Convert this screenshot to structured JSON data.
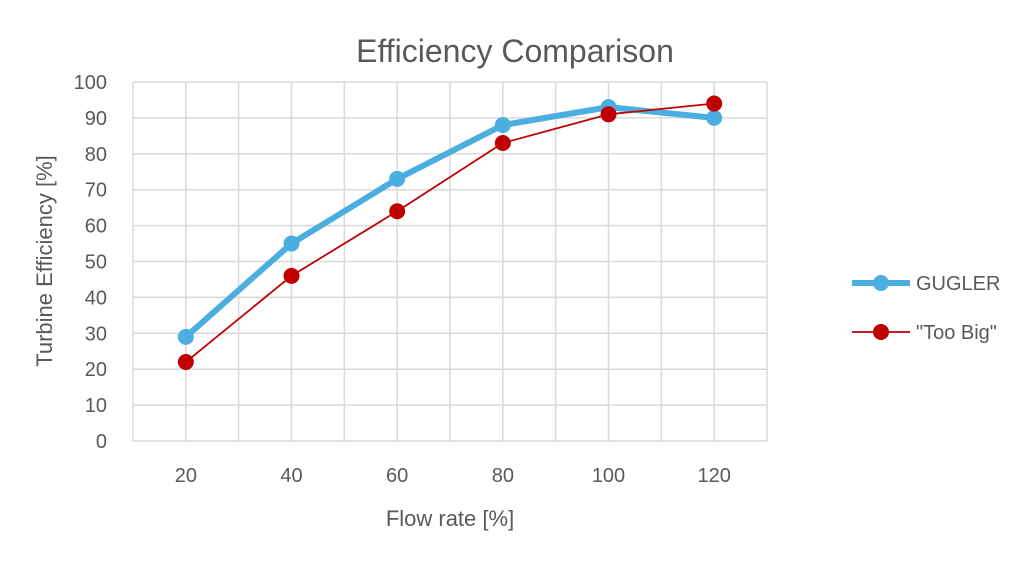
{
  "chart_data": {
    "type": "line",
    "title": "Efficiency Comparison",
    "xlabel": "Flow rate [%]",
    "ylabel": "Turbine Efficiency [%]",
    "categories": [
      "20",
      "40",
      "60",
      "80",
      "100",
      "120"
    ],
    "ylim": [
      0,
      100
    ],
    "yticks": [
      "0",
      "10",
      "20",
      "30",
      "40",
      "50",
      "60",
      "70",
      "80",
      "90",
      "100"
    ],
    "grid": true,
    "legend_position": "right",
    "series": [
      {
        "name": "GUGLER",
        "values": [
          29,
          55,
          73,
          88,
          93,
          90
        ],
        "color": "#4BAEE0"
      },
      {
        "name": "\"Too Big\"",
        "values": [
          22,
          46,
          64,
          83,
          91,
          94
        ],
        "color": "#C00000"
      }
    ]
  }
}
